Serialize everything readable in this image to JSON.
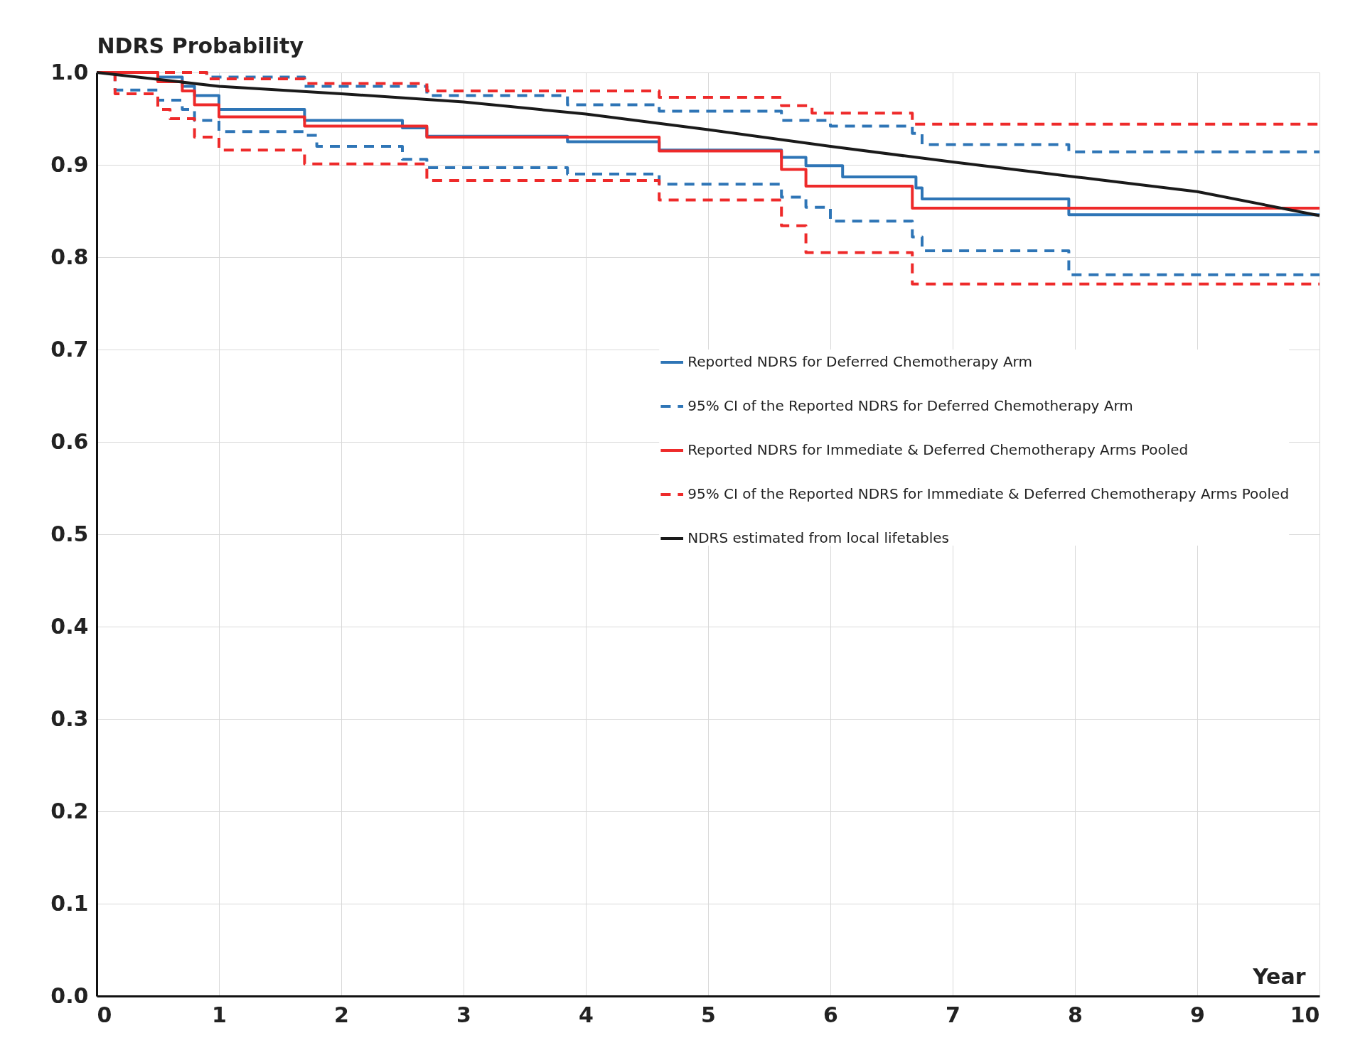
{
  "chart_data": {
    "type": "step",
    "ylabel": "NDRS Probability",
    "xlabel": "Year",
    "xlim": [
      0,
      10
    ],
    "xticks": [
      0,
      1,
      2,
      3,
      4,
      5,
      6,
      7,
      8,
      9,
      10
    ],
    "ylim": [
      0,
      1
    ],
    "yticks": [
      {
        "value": 0,
        "label": "0.0"
      },
      0.1,
      0.2,
      0.3,
      0.4,
      0.5,
      0.6,
      0.7,
      0.8,
      0.9,
      {
        "value": 1,
        "label": "1.0"
      }
    ],
    "grid": true,
    "legend": "right",
    "series": [
      {
        "name": "Reported NDRS for Deferred Chemotherapy Arm",
        "color": "#2e75b6",
        "line_style": "solid",
        "x": [
          0,
          0.5,
          0.7,
          0.8,
          1.0,
          1.7,
          2.5,
          2.7,
          3.85,
          4.6,
          5.6,
          5.8,
          6.1,
          6.7,
          6.75,
          7.95,
          10
        ],
        "values": [
          1.0,
          0.995,
          0.985,
          0.975,
          0.96,
          0.948,
          0.94,
          0.931,
          0.925,
          0.916,
          0.908,
          0.899,
          0.887,
          0.875,
          0.863,
          0.846,
          0.846
        ]
      },
      {
        "name": "95% CI of the Reported NDRS for Deferred Chemotherapy Arm",
        "color": "#2e75b6",
        "line_style": "dashed",
        "x": [
          0,
          0.9,
          1.7,
          2.7,
          3.85,
          4.6,
          5.6,
          6.0,
          6.67,
          6.75,
          7.95,
          10
        ],
        "values": [
          1.0,
          0.995,
          0.985,
          0.975,
          0.965,
          0.958,
          0.948,
          0.942,
          0.934,
          0.922,
          0.914,
          0.914
        ]
      },
      {
        "name": "Reported NDRS for Immediate & Deferred Chemotherapy Arms Pooled",
        "color": "#ee2a2a",
        "line_style": "solid",
        "x": [
          0,
          0.5,
          0.7,
          0.8,
          1.0,
          1.7,
          2.7,
          4.6,
          5.6,
          5.8,
          6.67,
          10
        ],
        "values": [
          1.0,
          0.99,
          0.98,
          0.965,
          0.952,
          0.942,
          0.93,
          0.915,
          0.895,
          0.877,
          0.853,
          0.853
        ]
      },
      {
        "name": "95% CI of the Reported NDRS for Immediate & Deferred Chemotherapy Arms Pooled",
        "color": "#ee2a2a",
        "line_style": "dashed",
        "x": [
          0,
          0.9,
          1.7,
          2.7,
          4.6,
          5.6,
          5.85,
          6.67,
          10
        ],
        "values": [
          1.0,
          0.993,
          0.988,
          0.98,
          0.973,
          0.964,
          0.956,
          0.944,
          0.944
        ]
      },
      {
        "name": null,
        "color": "#2e75b6",
        "line_style": "dashed",
        "x": [
          0,
          0.15,
          0.5,
          0.7,
          0.8,
          1.0,
          1.7,
          1.8,
          2.5,
          2.7,
          3.85,
          4.6,
          5.6,
          5.8,
          6.0,
          6.67,
          6.75,
          7.95,
          10
        ],
        "values": [
          1.0,
          0.981,
          0.97,
          0.96,
          0.948,
          0.936,
          0.932,
          0.92,
          0.906,
          0.897,
          0.89,
          0.879,
          0.865,
          0.854,
          0.839,
          0.822,
          0.807,
          0.781,
          0.781
        ]
      },
      {
        "name": null,
        "color": "#ee2a2a",
        "line_style": "dashed",
        "x": [
          0,
          0.15,
          0.5,
          0.6,
          0.8,
          1.0,
          1.7,
          2.7,
          4.6,
          5.6,
          5.8,
          6.67,
          10
        ],
        "values": [
          1.0,
          0.977,
          0.96,
          0.95,
          0.93,
          0.916,
          0.901,
          0.883,
          0.862,
          0.834,
          0.805,
          0.771,
          0.771
        ]
      },
      {
        "name": "NDRS estimated from local lifetables",
        "type": "line",
        "color": "#1a1a1a",
        "line_style": "solid",
        "x": [
          0,
          1,
          2,
          3,
          4,
          5,
          6,
          7,
          8,
          9,
          10
        ],
        "values": [
          1.0,
          0.985,
          0.977,
          0.968,
          0.955,
          0.938,
          0.92,
          0.903,
          0.887,
          0.871,
          0.845
        ]
      }
    ]
  }
}
